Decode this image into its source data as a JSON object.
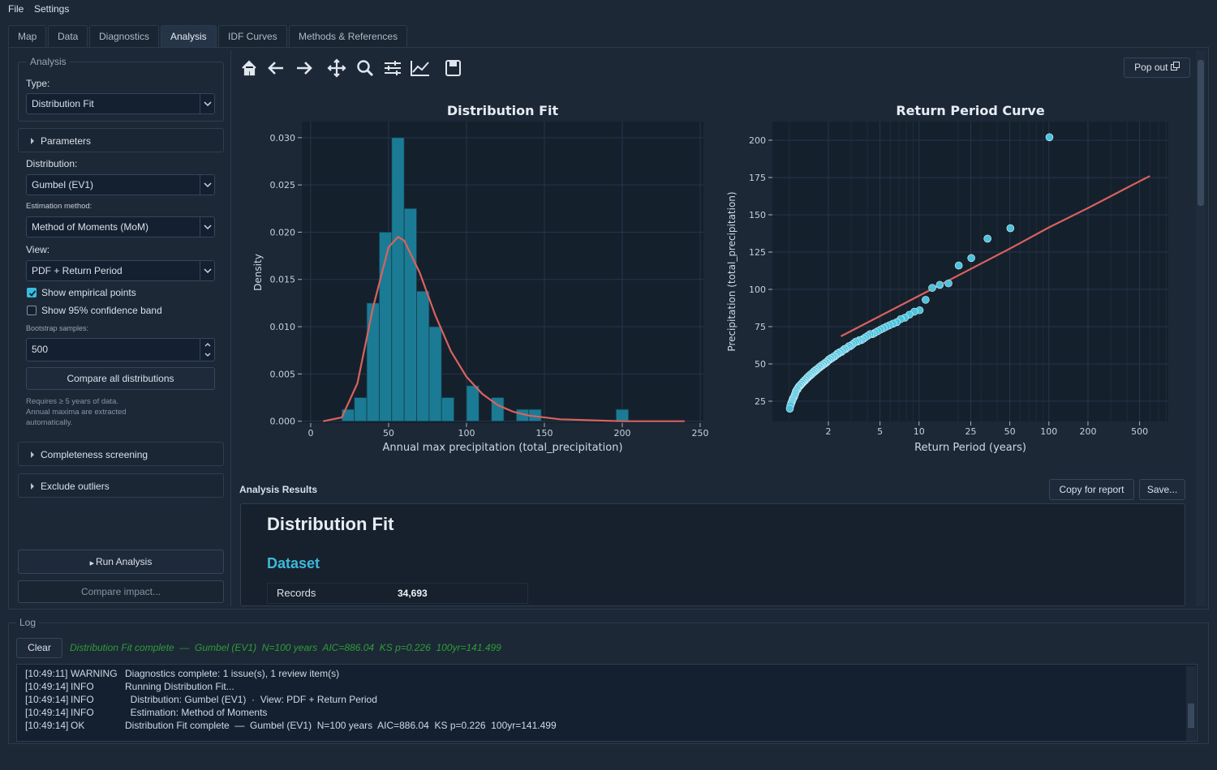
{
  "menu": [
    "File",
    "Settings"
  ],
  "tabs": {
    "items": [
      "Map",
      "Data",
      "Diagnostics",
      "Analysis",
      "IDF Curves",
      "Methods & References"
    ],
    "active": 3
  },
  "sidebar": {
    "group": "Analysis",
    "type_label": "Type:",
    "type_value": "Distribution Fit",
    "parameters": "Parameters",
    "distribution_label": "Distribution:",
    "distribution_value": "Gumbel (EV1)",
    "estimation_label": "Estimation method:",
    "estimation_value": "Method of Moments (MoM)",
    "view_label": "View:",
    "view_value": "PDF + Return Period",
    "checkboxes": [
      {
        "label": "Show empirical points",
        "checked": true
      },
      {
        "label": "Show 95% confidence band",
        "checked": false
      }
    ],
    "bootstrap_label": "Bootstrap samples:",
    "bootstrap_value": 500,
    "compare_button": "Compare all distributions",
    "note": [
      "Requires ≥ 5 years of data.",
      "Annual maxima are extracted",
      "automatically."
    ],
    "sections": [
      "Completeness screening",
      "Exclude outliers"
    ],
    "run_button": "Run Analysis",
    "impact_button": "Compare impact..."
  },
  "toolbar": {
    "pop_out": "Pop out"
  },
  "chart_data": [
    {
      "type": "histogram",
      "title": "Distribution Fit",
      "xlabel": "Annual max precipitation (total_precipitation)",
      "ylabel": "Density",
      "bins": [
        20,
        28,
        36,
        44,
        52,
        60,
        68,
        76,
        84,
        92,
        100,
        108,
        116,
        124,
        132,
        140,
        148,
        156,
        164,
        172,
        180,
        188,
        196,
        204
      ],
      "values": [
        0.00125,
        0.0025,
        0.0125,
        0.02,
        0.03,
        0.0225,
        0.01375,
        0.01,
        0.0025,
        0,
        0.00375,
        0,
        0.0025,
        0,
        0.00125,
        0.00125,
        0,
        0,
        0,
        0,
        0,
        0,
        0.00125
      ],
      "color": "#1b7b95",
      "curve": {
        "x": [
          8,
          20,
          30,
          40,
          50,
          56,
          60,
          70,
          80,
          90,
          100,
          110,
          120,
          130,
          140,
          160,
          180,
          200,
          240
        ],
        "values": [
          0,
          0.0004,
          0.004,
          0.012,
          0.0184,
          0.0195,
          0.0191,
          0.0157,
          0.0112,
          0.0074,
          0.0047,
          0.0029,
          0.0017,
          0.001,
          0.0006,
          0.0002,
          0.0001,
          0,
          0
        ],
        "color": "#d9625f"
      },
      "xlim": [
        -5.7,
        252.1
      ],
      "ylim": [
        -0.0002,
        0.0317
      ],
      "xticks": [
        0,
        50,
        100,
        150,
        200,
        250
      ],
      "yticks": [
        {
          "value": 0,
          "label": "0.000"
        },
        {
          "value": 0.005,
          "label": "0.005"
        },
        {
          "value": 0.01,
          "label": "0.010"
        },
        {
          "value": 0.015,
          "label": "0.015"
        },
        {
          "value": 0.02,
          "label": "0.020"
        },
        {
          "value": 0.025,
          "label": "0.025"
        },
        {
          "value": 0.03,
          "label": "0.030"
        }
      ],
      "grid": true
    },
    {
      "type": "scatter",
      "title": "Return Period Curve",
      "xlabel": "Return Period (years)",
      "ylabel": "Precipitation (total_precipitation)",
      "xscale": "log",
      "points": {
        "x": [
          101,
          50.5,
          33.67,
          25.25,
          20.2,
          16.83,
          14.43,
          12.63,
          11.22,
          10.1,
          9.18,
          8.42,
          7.77,
          7.21,
          6.73,
          6.31,
          5.94,
          5.61,
          5.32,
          5.05,
          4.81,
          4.59,
          4.39,
          4.21,
          4.04,
          3.88,
          3.74,
          3.61,
          3.48,
          3.37,
          3.26,
          3.16,
          3.06,
          2.97,
          2.89,
          2.81,
          2.73,
          2.66,
          2.59,
          2.53,
          2.46,
          2.4,
          2.35,
          2.3,
          2.24,
          2.2,
          2.15,
          2.1,
          2.06,
          2.02,
          1.98,
          1.94,
          1.91,
          1.87,
          1.84,
          1.8,
          1.77,
          1.74,
          1.71,
          1.68,
          1.66,
          1.63,
          1.6,
          1.58,
          1.55,
          1.53,
          1.51,
          1.49,
          1.46,
          1.44,
          1.42,
          1.4,
          1.38,
          1.36,
          1.35,
          1.33,
          1.31,
          1.29,
          1.28,
          1.26,
          1.25,
          1.23,
          1.22,
          1.2,
          1.19,
          1.17,
          1.16,
          1.15,
          1.13,
          1.12,
          1.11,
          1.1,
          1.09,
          1.07,
          1.06,
          1.05,
          1.04,
          1.03,
          1.02,
          1.01
        ],
        "values": [
          202,
          141,
          134,
          121,
          116,
          104,
          103,
          101,
          93,
          86,
          85,
          83,
          81,
          80,
          78,
          77,
          76,
          75,
          74,
          73,
          72,
          71,
          70,
          70,
          69,
          68,
          67,
          66,
          66,
          65,
          65,
          64,
          63,
          62,
          62,
          61,
          60,
          60,
          59,
          58,
          58,
          57,
          57,
          56,
          55,
          55,
          54,
          54,
          53,
          53,
          52,
          51,
          51,
          50,
          50,
          49,
          49,
          48,
          48,
          47,
          47,
          46,
          46,
          45,
          45,
          44,
          44,
          43,
          43,
          42,
          42,
          41,
          41,
          40,
          40,
          39,
          39,
          38,
          38,
          37,
          37,
          36,
          36,
          35,
          35,
          34,
          33,
          33,
          32,
          31,
          30,
          29,
          28,
          27,
          26,
          25,
          24,
          23,
          22,
          20
        ],
        "color": "#4cc3dd"
      },
      "fit": {
        "x": [
          2.5,
          5,
          10,
          25,
          50,
          100,
          200,
          500,
          600
        ],
        "values": [
          68.5,
          82.1,
          95.7,
          113.7,
          127.3,
          141.5,
          154.5,
          172.5,
          176
        ],
        "color": "#d9625f"
      },
      "xlim": [
        0.741,
        832
      ],
      "ylim": [
        11.4,
        212.5
      ],
      "xticks": [
        2,
        5,
        10,
        25,
        50,
        100,
        200,
        500
      ],
      "yticks": [
        25,
        50,
        75,
        100,
        125,
        150,
        175,
        200
      ],
      "xminor_grid": [
        1,
        3,
        4,
        6,
        7,
        8,
        9,
        20,
        30,
        40,
        60,
        70,
        80,
        90,
        300,
        400,
        600,
        700,
        800
      ],
      "grid": true
    }
  ],
  "results": {
    "title": "Analysis Results",
    "buttons": [
      "Copy for report",
      "Save..."
    ],
    "heading": "Distribution Fit",
    "section": "Dataset",
    "rows": [
      [
        "Records",
        "34,693"
      ]
    ]
  },
  "log": {
    "title": "Log",
    "clear": "Clear",
    "status": "Distribution Fit complete  —  Gumbel (EV1)  N=100 years  AIC=886.04  KS p=0.226  100yr=141.499",
    "entries": [
      {
        "time": "[10:49:11]",
        "level": "WARNING",
        "message": "Diagnostics complete: 1 issue(s), 1 review item(s)"
      },
      {
        "time": "[10:49:14]",
        "level": "INFO",
        "message": "Running Distribution Fit..."
      },
      {
        "time": "[10:49:14]",
        "level": "INFO",
        "message": "  Distribution: Gumbel (EV1)  ·  View: PDF + Return Period"
      },
      {
        "time": "[10:49:14]",
        "level": "INFO",
        "message": "  Estimation: Method of Moments"
      },
      {
        "time": "[10:49:14]",
        "level": "OK",
        "message": "Distribution Fit complete  —  Gumbel (EV1)  N=100 years  AIC=886.04  KS p=0.226  100yr=141.499"
      }
    ]
  }
}
